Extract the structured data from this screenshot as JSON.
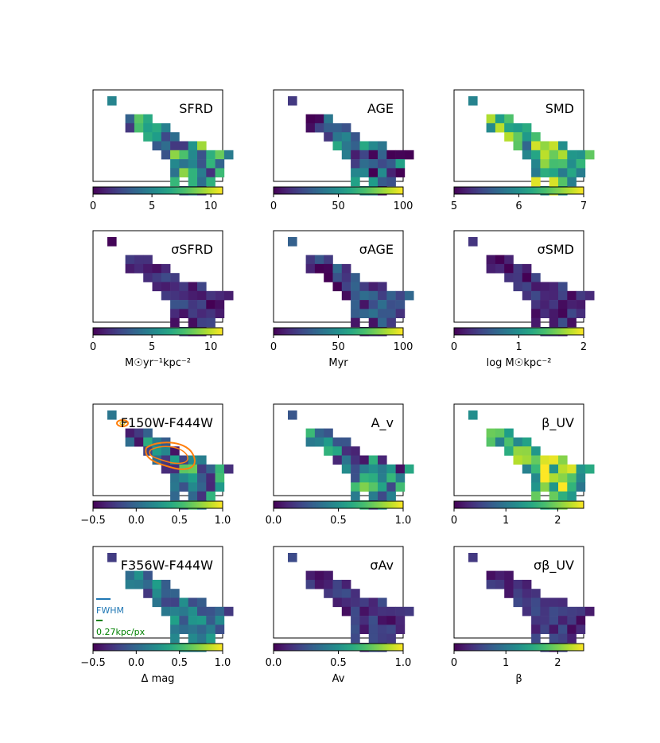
{
  "chart_data": [
    {
      "type": "heatmap",
      "title": "SFRD",
      "vmin": 0,
      "vmax": 11,
      "cbar_ticks": [
        "0",
        "5",
        "10"
      ],
      "cbar_tick_values": [
        0,
        5,
        10
      ],
      "cbar_label": "",
      "seed": 1,
      "bias": 0.42,
      "spread": 0.35
    },
    {
      "type": "heatmap",
      "title": "AGE",
      "vmin": 0,
      "vmax": 100,
      "cbar_ticks": [
        "0",
        "50",
        "100"
      ],
      "cbar_tick_values": [
        0,
        50,
        100
      ],
      "cbar_label": "",
      "seed": 2,
      "bias": 0.25,
      "spread": 0.35
    },
    {
      "type": "heatmap",
      "title": "SMD",
      "vmin": 5,
      "vmax": 7,
      "cbar_ticks": [
        "5",
        "6",
        "7"
      ],
      "cbar_tick_values": [
        5,
        6,
        7
      ],
      "cbar_label": "",
      "seed": 3,
      "bias": 0.62,
      "spread": 0.3
    },
    {
      "type": "heatmap",
      "title": "σSFRD",
      "vmin": 0,
      "vmax": 11,
      "cbar_ticks": [
        "0",
        "5",
        "10"
      ],
      "cbar_tick_values": [
        0,
        5,
        10
      ],
      "cbar_label": "M☉yr⁻¹kpc⁻²",
      "seed": 4,
      "bias": 0.12,
      "spread": 0.12
    },
    {
      "type": "heatmap",
      "title": "σAGE",
      "vmin": 0,
      "vmax": 100,
      "cbar_ticks": [
        "0",
        "50",
        "100"
      ],
      "cbar_tick_values": [
        0,
        50,
        100
      ],
      "cbar_label": "Myr",
      "seed": 5,
      "bias": 0.15,
      "spread": 0.2
    },
    {
      "type": "heatmap",
      "title": "σSMD",
      "vmin": 0,
      "vmax": 2,
      "cbar_ticks": [
        "0",
        "1",
        "2"
      ],
      "cbar_tick_values": [
        0,
        1,
        2
      ],
      "cbar_label": "log M☉kpc⁻²",
      "seed": 6,
      "bias": 0.1,
      "spread": 0.12
    },
    {
      "type": "heatmap",
      "title": "F150W-F444W",
      "vmin": -0.5,
      "vmax": 1.0,
      "cbar_ticks": [
        "−0.5",
        "0.0",
        "0.5",
        "1.0"
      ],
      "cbar_tick_values": [
        -0.5,
        0,
        0.5,
        1.0
      ],
      "cbar_label": "",
      "seed": 7,
      "bias": 0.35,
      "spread": 0.35,
      "contours": true
    },
    {
      "type": "heatmap",
      "title": "A_v",
      "vmin": 0.0,
      "vmax": 1.0,
      "cbar_ticks": [
        "0.0",
        "0.5",
        "1.0"
      ],
      "cbar_tick_values": [
        0,
        0.5,
        1.0
      ],
      "cbar_label": "",
      "seed": 8,
      "bias": 0.35,
      "spread": 0.4
    },
    {
      "type": "heatmap",
      "title": "β_UV",
      "vmin": 0,
      "vmax": 2.5,
      "cbar_ticks": [
        "0",
        "1",
        "2"
      ],
      "cbar_tick_values": [
        0,
        1,
        2
      ],
      "cbar_label": "",
      "seed": 9,
      "bias": 0.65,
      "spread": 0.3
    },
    {
      "type": "heatmap",
      "title": "F356W-F444W",
      "vmin": -0.5,
      "vmax": 1.0,
      "cbar_ticks": [
        "−0.5",
        "0.0",
        "0.5",
        "1.0"
      ],
      "cbar_tick_values": [
        -0.5,
        0,
        0.5,
        1.0
      ],
      "cbar_label": "Δ mag",
      "seed": 10,
      "bias": 0.35,
      "spread": 0.2,
      "legend": true
    },
    {
      "type": "heatmap",
      "title": "σAv",
      "vmin": 0.0,
      "vmax": 1.0,
      "cbar_ticks": [
        "0.0",
        "0.5",
        "1.0"
      ],
      "cbar_tick_values": [
        0,
        0.5,
        1.0
      ],
      "cbar_label": "Av",
      "seed": 11,
      "bias": 0.13,
      "spread": 0.12
    },
    {
      "type": "heatmap",
      "title": "σβ_UV",
      "vmin": 0,
      "vmax": 2.5,
      "cbar_ticks": [
        "0",
        "1",
        "2"
      ],
      "cbar_tick_values": [
        0,
        1,
        2
      ],
      "cbar_label": "β",
      "seed": 12,
      "bias": 0.12,
      "spread": 0.1
    }
  ],
  "legend": {
    "fwhm": "FWHM",
    "scale": "0.27kpc/px"
  },
  "colors": {
    "fwhm": "#1f77b4",
    "scale": "#008000",
    "contour": "#ff7f0e"
  }
}
